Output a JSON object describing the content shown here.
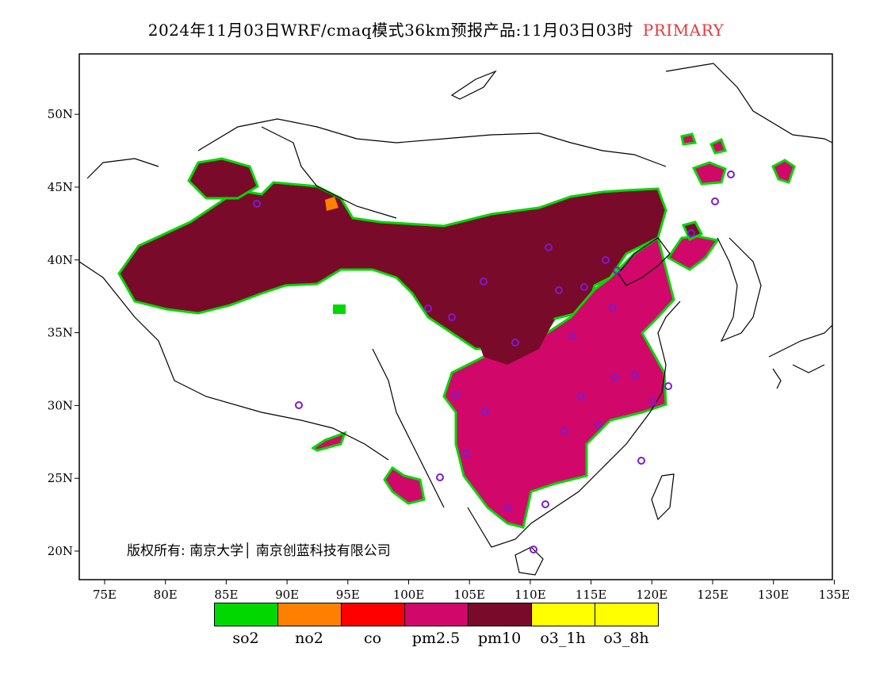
{
  "title": {
    "text": "2024年11月03日WRF/cmaq模式36km预报产品:11月03日03时",
    "tag": "PRIMARY",
    "tag_color": "#e8383d"
  },
  "map": {
    "lon_labels": [
      "75E",
      "80E",
      "85E",
      "90E",
      "95E",
      "100E",
      "105E",
      "110E",
      "115E",
      "120E",
      "125E",
      "130E",
      "135E"
    ],
    "lat_labels": [
      "20N",
      "25N",
      "30N",
      "35N",
      "40N",
      "45N",
      "50N"
    ],
    "pollutant_colors": {
      "pm10": "#7a0a2a",
      "pm25": "#d1076a",
      "co": "#ff0000",
      "no2": "#ff8000",
      "so2": "#00d800"
    }
  },
  "copyright": "版权所有: 南京大学│ 南京创蓝科技有限公司",
  "legend": [
    {
      "label": "so2",
      "color": "#00d800"
    },
    {
      "label": "no2",
      "color": "#ff8000"
    },
    {
      "label": "co",
      "color": "#ff0000"
    },
    {
      "label": "pm2.5",
      "color": "#d1076a"
    },
    {
      "label": "pm10",
      "color": "#7a0a2a"
    },
    {
      "label": "o3_1h",
      "color": "#ffff00"
    },
    {
      "label": "o3_8h",
      "color": "#ffff00"
    }
  ]
}
